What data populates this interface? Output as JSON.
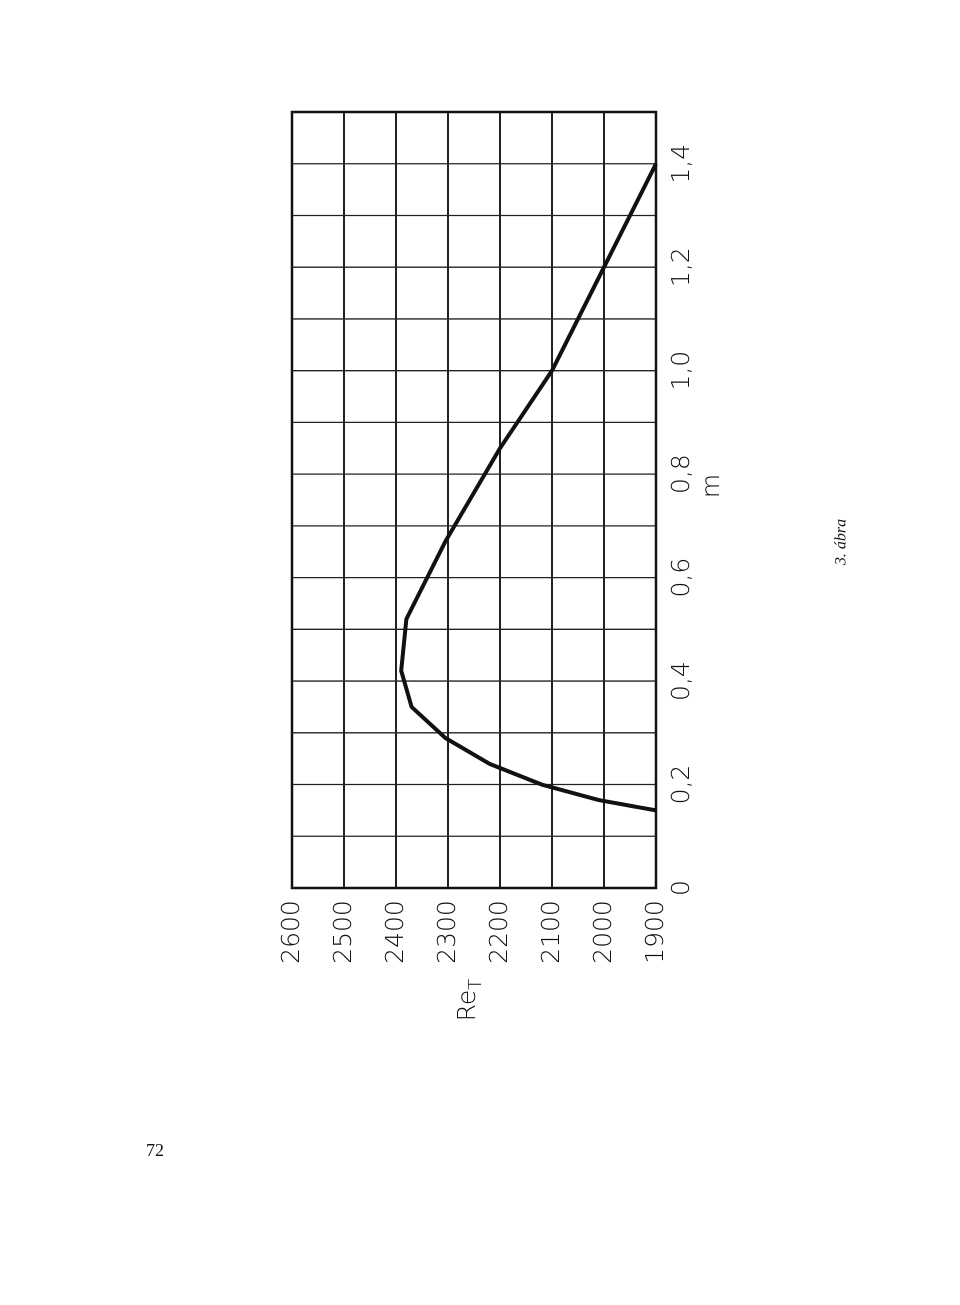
{
  "chart_data": {
    "type": "line",
    "x_label": "m",
    "y_label": "Re",
    "y_label_subscript": "T",
    "x": [
      0.15,
      0.17,
      0.2,
      0.24,
      0.29,
      0.35,
      0.42,
      0.52,
      0.57,
      0.67,
      0.85,
      1.0,
      1.2,
      1.4
    ],
    "values": [
      1900,
      2010,
      2120,
      2220,
      2305,
      2370,
      2390,
      2380,
      2355,
      2305,
      2200,
      2100,
      2000,
      1900
    ],
    "color": "#111111",
    "xlim": [
      0,
      1.5
    ],
    "ylim": [
      1900,
      2600
    ],
    "xticks": [
      0,
      {
        "value": 0.2,
        "label": "0,2"
      },
      {
        "value": 0.4,
        "label": "0,4"
      },
      {
        "value": 0.6,
        "label": "0,6"
      },
      {
        "value": 0.8,
        "label": "0,8"
      },
      {
        "value": 1.0,
        "label": "1,0"
      },
      {
        "value": 1.2,
        "label": "1,2"
      },
      {
        "value": 1.4,
        "label": "1,4"
      }
    ],
    "x_minor_ticks": [
      0.1,
      0.3,
      0.5,
      0.7,
      0.9,
      1.1,
      1.3
    ],
    "yticks": [
      2600,
      2500,
      2400,
      2300,
      2200,
      2100,
      2000,
      1900
    ],
    "grid": true
  },
  "caption": "3. ábra",
  "page_number": "72"
}
